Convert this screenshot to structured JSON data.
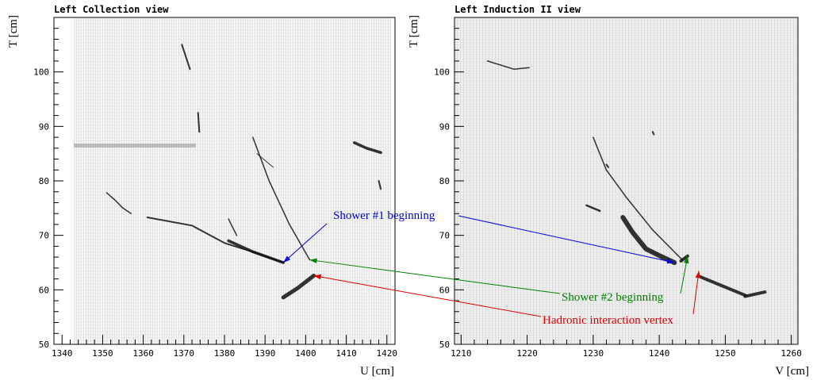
{
  "chart_data": [
    {
      "type": "scatter",
      "title": "Left Collection view",
      "xlabel": "U [cm]",
      "ylabel": "T [cm]",
      "xlim": [
        1338,
        1422
      ],
      "ylim": [
        50,
        110
      ],
      "xticks": [
        1340,
        1350,
        1360,
        1370,
        1380,
        1390,
        1400,
        1410,
        1420
      ],
      "yticks": [
        50,
        60,
        70,
        80,
        90,
        100
      ],
      "colormap": "grayscale",
      "tracks": [
        {
          "points": [
            [
              1361,
              73.3
            ],
            [
              1372,
              71.8
            ],
            [
              1380,
              68.6
            ],
            [
              1386,
              67.2
            ],
            [
              1394.5,
              65.0
            ]
          ],
          "width": 2
        },
        {
          "points": [
            [
              1381,
              69.0
            ],
            [
              1387,
              67.0
            ],
            [
              1394.5,
              65.0
            ]
          ],
          "width": 3.5
        },
        {
          "points": [
            [
              1394.5,
              58.6
            ],
            [
              1398,
              60.3
            ],
            [
              1402,
              62.6
            ]
          ],
          "width": 5
        },
        {
          "points": [
            [
              1387,
              88
            ],
            [
              1391,
              80
            ],
            [
              1396,
              72
            ],
            [
              1401,
              65.5
            ]
          ],
          "width": 1.5
        },
        {
          "points": [
            [
              1369.5,
              105
            ],
            [
              1371.5,
              100.5
            ]
          ],
          "width": 2
        },
        {
          "points": [
            [
              1373.5,
              92.5
            ],
            [
              1373.8,
              89
            ]
          ],
          "width": 2
        },
        {
          "points": [
            [
              1412,
              87
            ],
            [
              1415,
              86
            ],
            [
              1418.5,
              85.2
            ]
          ],
          "width": 3.5
        },
        {
          "points": [
            [
              1351,
              77.8
            ],
            [
              1353,
              76.5
            ],
            [
              1355,
              75.0
            ],
            [
              1357,
              74.0
            ]
          ],
          "width": 1.5
        },
        {
          "points": [
            [
              1388,
              85
            ],
            [
              1392,
              82.5
            ]
          ],
          "width": 1
        },
        {
          "points": [
            [
              1381,
              73.0
            ],
            [
              1383,
              70.0
            ]
          ],
          "width": 1.5
        },
        {
          "points": [
            [
              1418,
              80
            ],
            [
              1418.5,
              78.5
            ]
          ],
          "width": 2
        }
      ],
      "annotations": [
        {
          "text": "Shower #1 beginning",
          "color": "#0000e0",
          "x": 1394.5,
          "y": 65.0
        },
        {
          "text": "",
          "color": "#008000",
          "x": 1401,
          "y": 65.5
        },
        {
          "text": "",
          "color": "#e00000",
          "x": 1402,
          "y": 62.6
        }
      ]
    },
    {
      "type": "scatter",
      "title": "Left Induction II view",
      "xlabel": "V [cm]",
      "ylabel": "T [cm]",
      "xlim": [
        1209,
        1261
      ],
      "ylim": [
        50,
        110
      ],
      "xticks": [
        1210,
        1220,
        1230,
        1240,
        1250,
        1260
      ],
      "yticks": [
        50,
        60,
        70,
        80,
        90,
        100
      ],
      "colormap": "grayscale",
      "tracks": [
        {
          "points": [
            [
              1234.5,
              73.3
            ],
            [
              1236,
              70.5
            ],
            [
              1238,
              67.5
            ],
            [
              1240,
              66.3
            ],
            [
              1242.3,
              65.0
            ]
          ],
          "width": 6
        },
        {
          "points": [
            [
              1230,
              88
            ],
            [
              1232,
              82
            ],
            [
              1235,
              77
            ],
            [
              1239,
              71
            ],
            [
              1243.5,
              65.5
            ]
          ],
          "width": 1.5
        },
        {
          "points": [
            [
              1243.3,
              65.3
            ],
            [
              1244.3,
              66.2
            ]
          ],
          "width": 4
        },
        {
          "points": [
            [
              1246,
              62.5
            ],
            [
              1249,
              61.0
            ],
            [
              1253,
              59.0
            ]
          ],
          "width": 4
        },
        {
          "points": [
            [
              1253,
              58.8
            ],
            [
              1256,
              59.6
            ]
          ],
          "width": 4
        },
        {
          "points": [
            [
              1214,
              102
            ],
            [
              1218,
              100.5
            ],
            [
              1220.3,
              100.8
            ]
          ],
          "width": 1.5
        },
        {
          "points": [
            [
              1229,
              75.5
            ],
            [
              1231,
              74.5
            ]
          ],
          "width": 2.5
        },
        {
          "points": [
            [
              1232,
              83
            ],
            [
              1232.3,
              82.5
            ]
          ],
          "width": 2
        },
        {
          "points": [
            [
              1239,
              89
            ],
            [
              1239.2,
              88.5
            ]
          ],
          "width": 2
        }
      ],
      "annotations": [
        {
          "text": "",
          "color": "#0000e0",
          "x": 1242.3,
          "y": 65.0
        },
        {
          "text": "Shower #2 beginning",
          "color": "#008000",
          "x": 1244.3,
          "y": 66.2
        },
        {
          "text": "Hadronic interaction vertex",
          "color": "#e00000",
          "x": 1246,
          "y": 63.5
        }
      ]
    }
  ]
}
